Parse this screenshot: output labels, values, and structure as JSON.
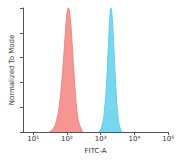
{
  "chart_data": {
    "type": "area",
    "x_label": "FITC-A",
    "y_label": "Normalized To Mode",
    "log": "x",
    "grid": false,
    "tick_labels": "x",
    "xlim": [
      5,
      100000
    ],
    "xticks": [
      {
        "value": 10,
        "label": "10¹"
      },
      {
        "value": 100,
        "label": "10²"
      },
      {
        "value": 1000,
        "label": "10³"
      },
      {
        "value": 10000,
        "label": "10⁴"
      },
      {
        "value": 100000,
        "label": "10⁵"
      }
    ],
    "ylim": [
      0,
      100
    ],
    "yticks": [
      0,
      20,
      40,
      60,
      80,
      100
    ],
    "series": [
      {
        "color": "#f4847f",
        "x": [
          30,
          40,
          50,
          60,
          70,
          80,
          90,
          100,
          110,
          125,
          140,
          160,
          180,
          210,
          250,
          300
        ],
        "values": [
          0,
          3,
          10,
          22,
          40,
          60,
          80,
          95,
          100,
          92,
          75,
          50,
          30,
          12,
          4,
          0
        ]
      },
      {
        "color": "#5fd0ec",
        "x": [
          900,
          1100,
          1300,
          1500,
          1700,
          1900,
          2000,
          2200,
          2500,
          2800,
          3200,
          3700,
          4300
        ],
        "values": [
          0,
          5,
          18,
          40,
          70,
          95,
          100,
          92,
          65,
          38,
          15,
          4,
          0
        ]
      }
    ]
  }
}
